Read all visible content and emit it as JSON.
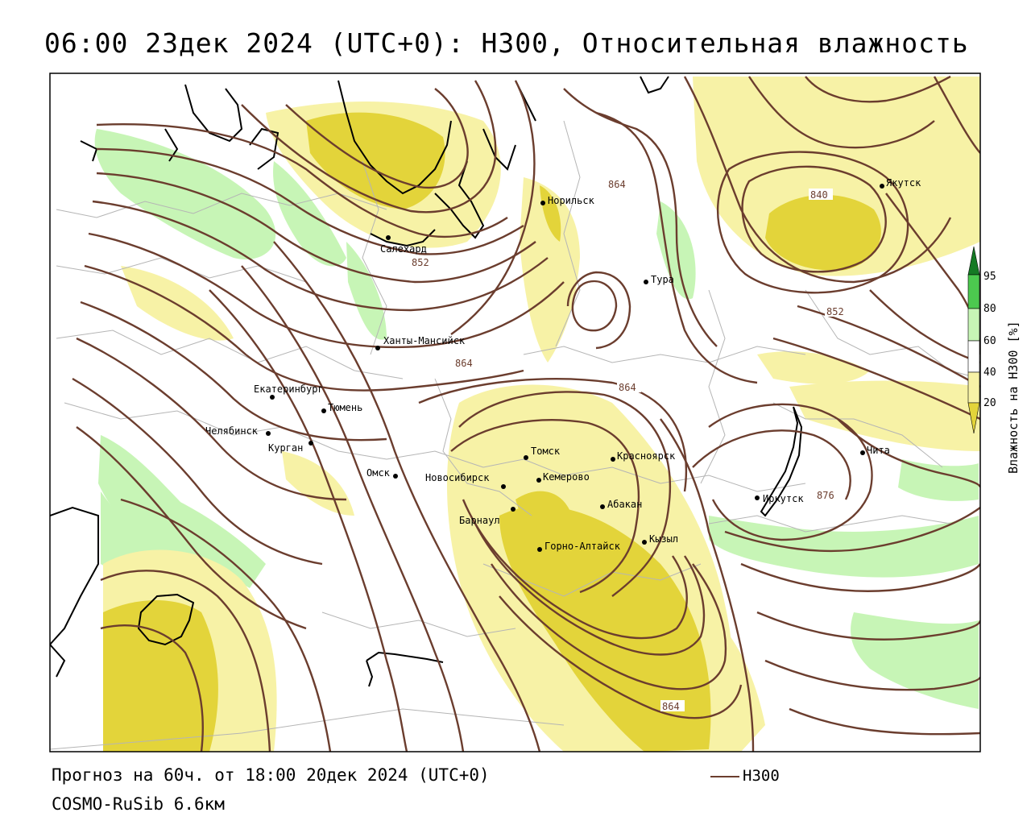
{
  "title": "06:00 23дек 2024 (UTC+0): H300, Относительная влажность",
  "footer": {
    "forecast": "Прогноз на 60ч. от 18:00 20дек 2024 (UTC+0)",
    "model": "COSMO-RuSib 6.6км"
  },
  "legend": {
    "h300_label": "H300",
    "h300_color": "#6b3d2e"
  },
  "colorbar": {
    "title": "Влажность на H300 [%]",
    "ticks": [
      "95",
      "80",
      "60",
      "40",
      "20"
    ],
    "colors": {
      "lt20": "#e3d43a",
      "c20_40": "#f7f2a6",
      "c40_60": "#ffffff",
      "c60_80": "#c7f5b6",
      "c80_95": "#4cc94f",
      "gt95": "#157a24"
    }
  },
  "colors": {
    "dry_strong": "#e3d43a",
    "dry_light": "#f7f2a6",
    "wet_light": "#c7f5b6",
    "contour": "#6b3d2e",
    "border": "#b5b5b5",
    "coast": "#000000"
  },
  "cities": [
    {
      "name": "Салехард"
    },
    {
      "name": "Норильск"
    },
    {
      "name": "Якутск"
    },
    {
      "name": "Тура"
    },
    {
      "name": "Ханты-Мансийск"
    },
    {
      "name": "Екатеринбург"
    },
    {
      "name": "Тюмень"
    },
    {
      "name": "Челябинск"
    },
    {
      "name": "Курган"
    },
    {
      "name": "Омск"
    },
    {
      "name": "Новосибирск"
    },
    {
      "name": "Томск"
    },
    {
      "name": "Кемерово"
    },
    {
      "name": "Красноярск"
    },
    {
      "name": "Барнаул"
    },
    {
      "name": "Абакан"
    },
    {
      "name": "Горно-Алтайск"
    },
    {
      "name": "Кызыл"
    },
    {
      "name": "Иркутск"
    },
    {
      "name": "Чита"
    }
  ],
  "contour_labels": [
    {
      "value": "852"
    },
    {
      "value": "864"
    },
    {
      "value": "840"
    },
    {
      "value": "852"
    },
    {
      "value": "864"
    },
    {
      "value": "864"
    },
    {
      "value": "876"
    },
    {
      "value": "864"
    }
  ]
}
